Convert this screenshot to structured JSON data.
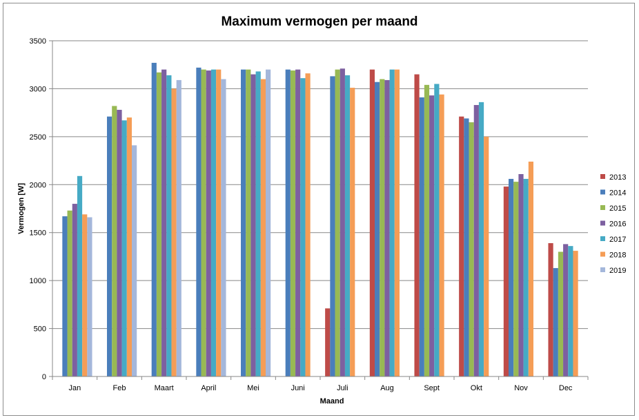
{
  "chart_data": {
    "type": "bar",
    "title": "Maximum vermogen per maand",
    "xlabel": "Maand",
    "ylabel": "Vermogen [W]",
    "ylim": [
      0,
      3500
    ],
    "yticks": [
      0,
      500,
      1000,
      1500,
      2000,
      2500,
      3000,
      3500
    ],
    "grid": true,
    "legend_position": "right",
    "categories": [
      "Jan",
      "Feb",
      "Maart",
      "April",
      "Mei",
      "Juni",
      "Juli",
      "Aug",
      "Sept",
      "Okt",
      "Nov",
      "Dec"
    ],
    "series": [
      {
        "name": "2013",
        "color": "#be4b48",
        "values": [
          null,
          null,
          null,
          null,
          null,
          null,
          710,
          3200,
          3150,
          2710,
          1980,
          1390
        ]
      },
      {
        "name": "2014",
        "color": "#4a7ebb",
        "values": [
          1670,
          2710,
          3270,
          3220,
          3200,
          3200,
          3130,
          3070,
          2910,
          2690,
          2060,
          1130
        ]
      },
      {
        "name": "2015",
        "color": "#98b954",
        "values": [
          1730,
          2820,
          3170,
          3200,
          3200,
          3190,
          3200,
          3100,
          3040,
          2650,
          2030,
          1300
        ]
      },
      {
        "name": "2016",
        "color": "#7d60a0",
        "values": [
          1800,
          2780,
          3200,
          3190,
          3150,
          3200,
          3210,
          3090,
          2930,
          2830,
          2110,
          1380
        ]
      },
      {
        "name": "2017",
        "color": "#46aac5",
        "values": [
          2090,
          2670,
          3140,
          3200,
          3180,
          3110,
          3140,
          3200,
          3050,
          2860,
          2060,
          1360
        ]
      },
      {
        "name": "2018",
        "color": "#f59d56",
        "values": [
          1690,
          2700,
          3000,
          3200,
          3100,
          3160,
          3010,
          3200,
          2940,
          2500,
          2240,
          1310
        ]
      },
      {
        "name": "2019",
        "color": "#a4b7db",
        "values": [
          1660,
          2410,
          3090,
          3100,
          3200,
          null,
          null,
          null,
          null,
          null,
          null,
          null
        ]
      }
    ]
  }
}
